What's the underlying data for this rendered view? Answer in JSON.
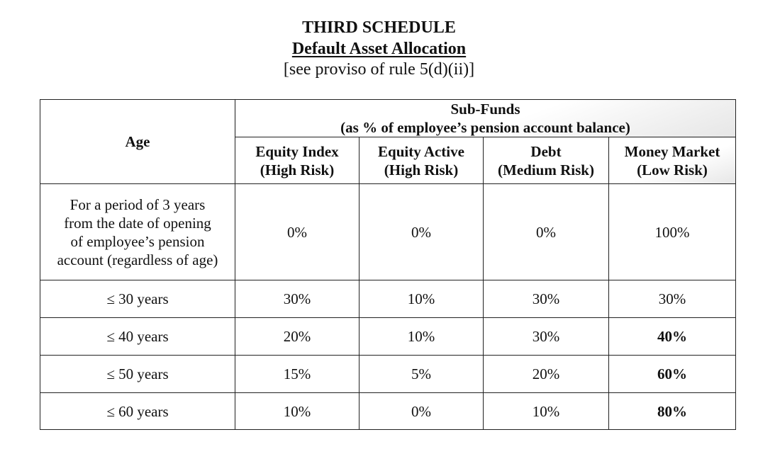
{
  "heading": {
    "title": "THIRD SCHEDULE",
    "subtitle": "Default Asset Allocation",
    "note": "[see proviso of rule 5(d)(ii)]"
  },
  "table": {
    "age_header": "Age",
    "group_header_line1": "Sub-Funds",
    "group_header_line2": "(as % of employee’s pension account balance)",
    "columns": [
      {
        "name": "Equity Index",
        "risk": "(High Risk)"
      },
      {
        "name": "Equity Active",
        "risk": "(High Risk)"
      },
      {
        "name": "Debt",
        "risk": "(Medium Risk)"
      },
      {
        "name": "Money Market",
        "risk": "(Low Risk)"
      }
    ],
    "rows": [
      {
        "age_lines": [
          "For a period of 3 years",
          "from the date of opening",
          "of employee’s pension",
          "account (regardless of age)"
        ],
        "values": [
          "0%",
          "0%",
          "0%",
          "100%"
        ]
      },
      {
        "age": "≤ 30 years",
        "values": [
          "30%",
          "10%",
          "30%",
          "30%"
        ]
      },
      {
        "age": "≤ 40 years",
        "values": [
          "20%",
          "10%",
          "30%",
          "40%"
        ]
      },
      {
        "age": "≤ 50 years",
        "values": [
          "15%",
          "5%",
          "20%",
          "60%"
        ]
      },
      {
        "age": "≤ 60 years",
        "values": [
          "10%",
          "0%",
          "10%",
          "80%"
        ]
      }
    ]
  }
}
